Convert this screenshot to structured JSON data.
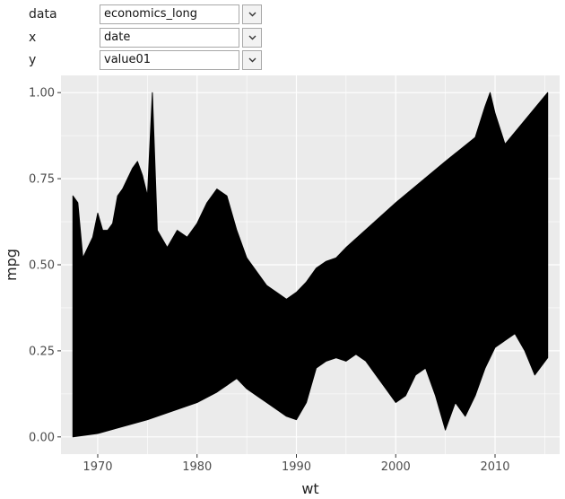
{
  "controls": {
    "rows": [
      {
        "label": "data",
        "value": "economics_long"
      },
      {
        "label": "x",
        "value": "date"
      },
      {
        "label": "y",
        "value": "value01"
      }
    ],
    "dropdown_icon": "chevron-down-icon"
  },
  "chart_data": {
    "type": "line",
    "xlabel": "wt",
    "ylabel": "mpg",
    "xlim": [
      1966.3,
      2016.5
    ],
    "ylim": [
      -0.05,
      1.05
    ],
    "x_ticks": [
      1970,
      1980,
      1990,
      2000,
      2010
    ],
    "x_tick_labels": [
      "1970",
      "1980",
      "1990",
      "2000",
      "2010"
    ],
    "y_ticks": [
      0.0,
      0.25,
      0.5,
      0.75,
      1.0
    ],
    "y_tick_labels": [
      "0.00",
      "0.25",
      "0.50",
      "0.75",
      "1.00"
    ],
    "grid": true,
    "panel_background": "#ebebeb",
    "grid_color": "#ffffff",
    "line_color": "#000000",
    "upper_envelope": {
      "x": [
        1967.5,
        1968,
        1968.5,
        1969,
        1969.5,
        1970,
        1970.5,
        1971,
        1971.5,
        1972,
        1972.5,
        1973,
        1973.5,
        1974,
        1974.5,
        1975,
        1975.5,
        1976,
        1977,
        1978,
        1979,
        1980,
        1981,
        1982,
        1983,
        1984,
        1985,
        1986,
        1987,
        1988,
        1989,
        1990,
        1991,
        1992,
        1993,
        1994,
        1995,
        2000,
        2005,
        2008,
        2009,
        2009.5,
        2010,
        2011,
        2015.3
      ],
      "y": [
        0.7,
        0.68,
        0.52,
        0.55,
        0.58,
        0.65,
        0.6,
        0.6,
        0.62,
        0.7,
        0.72,
        0.75,
        0.78,
        0.8,
        0.76,
        0.7,
        1.0,
        0.6,
        0.55,
        0.6,
        0.58,
        0.62,
        0.68,
        0.72,
        0.7,
        0.6,
        0.52,
        0.48,
        0.44,
        0.42,
        0.4,
        0.42,
        0.45,
        0.49,
        0.51,
        0.52,
        0.55,
        0.68,
        0.8,
        0.87,
        0.96,
        1.0,
        0.94,
        0.85,
        1.0
      ]
    },
    "lower_envelope": {
      "x": [
        1967.5,
        1970,
        1975,
        1980,
        1982,
        1984,
        1985,
        1986,
        1987,
        1988,
        1989,
        1990,
        1991,
        1992,
        1993,
        1994,
        1995,
        1996,
        1997,
        1998,
        1999,
        2000,
        2001,
        2002,
        2003,
        2004,
        2005,
        2006,
        2007,
        2008,
        2009,
        2010,
        2011,
        2012,
        2013,
        2014,
        2015.3
      ],
      "y": [
        0.0,
        0.01,
        0.05,
        0.1,
        0.13,
        0.17,
        0.14,
        0.12,
        0.1,
        0.08,
        0.06,
        0.05,
        0.1,
        0.2,
        0.22,
        0.23,
        0.22,
        0.24,
        0.22,
        0.18,
        0.14,
        0.1,
        0.12,
        0.18,
        0.2,
        0.12,
        0.02,
        0.1,
        0.06,
        0.12,
        0.2,
        0.26,
        0.28,
        0.3,
        0.25,
        0.18,
        0.23
      ]
    }
  }
}
